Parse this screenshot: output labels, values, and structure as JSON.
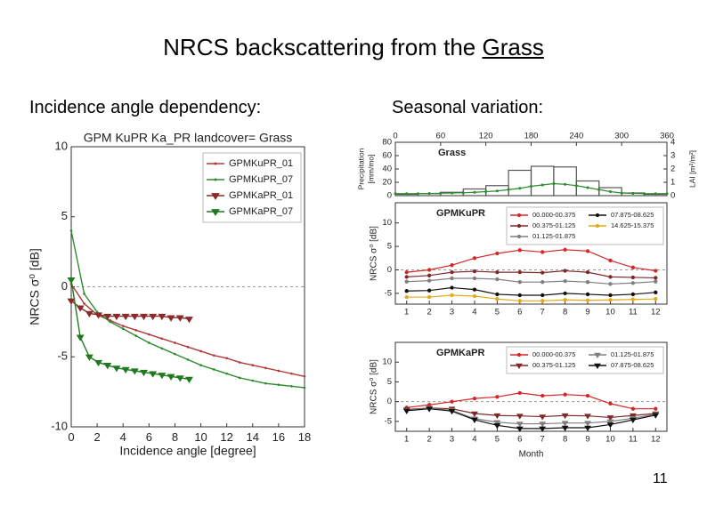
{
  "slide": {
    "title": [
      "NRCS backscattering from the",
      "Grass"
    ],
    "left_heading": "Incidence angle dependency:",
    "right_heading": "Seasonal variation:",
    "page_number": "11"
  },
  "chart_data": [
    {
      "type": "line",
      "title": "GPM KuPR Ka_PR  landcover= Grass",
      "xlabel": "Incidence angle [degree]",
      "ylabel": "NRCS σ⁰ [dB]",
      "xlim": [
        0,
        18
      ],
      "ylim": [
        -10,
        10
      ],
      "xticks": [
        0,
        2,
        4,
        6,
        8,
        10,
        12,
        14,
        16,
        18
      ],
      "yticks": [
        -10,
        -5,
        0,
        5,
        10
      ],
      "reference_line": 0,
      "legend": "upper right",
      "legend_columns": 1,
      "series": [
        {
          "name": "GPMKuPR_01",
          "color": "#b03a3a",
          "marker": "o",
          "x": [
            0,
            1,
            2,
            3,
            4,
            5,
            6,
            7,
            8,
            9,
            10,
            11,
            12,
            13,
            14,
            15,
            16,
            17,
            18
          ],
          "values": [
            0.2,
            -1.2,
            -2.0,
            -2.4,
            -2.8,
            -3.1,
            -3.4,
            -3.7,
            -4.0,
            -4.3,
            -4.6,
            -4.9,
            -5.1,
            -5.4,
            -5.6,
            -5.8,
            -6.0,
            -6.2,
            -6.4
          ]
        },
        {
          "name": "GPMKuPR_07",
          "color": "#2e8b2e",
          "marker": "o",
          "x": [
            0,
            1,
            2,
            3,
            4,
            5,
            6,
            7,
            8,
            9,
            10,
            11,
            12,
            13,
            14,
            15,
            16,
            17,
            18
          ],
          "values": [
            4.0,
            -0.5,
            -1.8,
            -2.5,
            -3.0,
            -3.5,
            -4.0,
            -4.4,
            -4.8,
            -5.2,
            -5.6,
            -5.9,
            -6.2,
            -6.5,
            -6.7,
            -6.9,
            -7.0,
            -7.1,
            -7.2
          ]
        },
        {
          "name": "GPMKaPR_01",
          "color": "#8b2a2a",
          "marker": "v",
          "x": [
            0,
            0.7,
            1.4,
            2.1,
            2.8,
            3.5,
            4.2,
            4.9,
            5.6,
            6.3,
            7.0,
            7.7,
            8.4,
            9.1
          ],
          "values": [
            -1.0,
            -1.5,
            -1.9,
            -2.0,
            -2.1,
            -2.1,
            -2.1,
            -2.1,
            -2.1,
            -2.1,
            -2.1,
            -2.2,
            -2.2,
            -2.3
          ]
        },
        {
          "name": "GPMKaPR_07",
          "color": "#1f7a1f",
          "marker": "v",
          "x": [
            0,
            0.7,
            1.4,
            2.1,
            2.8,
            3.5,
            4.2,
            4.9,
            5.6,
            6.3,
            7.0,
            7.7,
            8.4,
            9.1
          ],
          "values": [
            0.5,
            -3.6,
            -5.0,
            -5.4,
            -5.6,
            -5.8,
            -5.9,
            -6.0,
            -6.1,
            -6.2,
            -6.3,
            -6.4,
            -6.5,
            -6.6
          ]
        }
      ]
    },
    {
      "type": "histogram",
      "annotation": "Grass",
      "ylabel": [
        "Precipitation",
        "[mm/mo]"
      ],
      "y2label": "LAI [m²/m²]",
      "xaxis_position": "top",
      "xlim": [
        0,
        360
      ],
      "xticks": [
        0,
        60,
        120,
        180,
        240,
        300,
        360
      ],
      "ylim": [
        0,
        80
      ],
      "yticks": [
        0,
        20,
        40,
        60,
        80
      ],
      "y2lim": [
        0,
        4
      ],
      "y2ticks": [
        0,
        1,
        2,
        3,
        4
      ],
      "bins": [
        0,
        30,
        60,
        90,
        120,
        150,
        180,
        210,
        240,
        270,
        300,
        330,
        360
      ],
      "values": [
        2,
        3,
        5,
        10,
        15,
        38,
        44,
        43,
        22,
        12,
        4,
        2
      ],
      "color": "#555555",
      "lai": {
        "axis": "y2",
        "color": "#2e8b2e",
        "x": [
          0,
          15,
          30,
          45,
          60,
          75,
          90,
          105,
          120,
          135,
          150,
          165,
          180,
          195,
          210,
          225,
          240,
          255,
          270,
          285,
          300,
          315,
          330,
          345,
          360
        ],
        "values": [
          0.15,
          0.15,
          0.15,
          0.16,
          0.18,
          0.2,
          0.22,
          0.25,
          0.3,
          0.35,
          0.45,
          0.55,
          0.7,
          0.8,
          0.9,
          0.85,
          0.75,
          0.6,
          0.45,
          0.3,
          0.2,
          0.17,
          0.15,
          0.15,
          0.15
        ]
      }
    },
    {
      "type": "line",
      "annotation": "GPMKuPR",
      "ylabel": "NRCS σ⁰ [dB]",
      "xlim": [
        0.5,
        12.5
      ],
      "ylim": [
        -7.3,
        14.3
      ],
      "xticks": [
        1,
        2,
        3,
        4,
        5,
        6,
        7,
        8,
        9,
        10,
        11,
        12
      ],
      "yticks": [
        -5,
        0,
        5,
        10
      ],
      "reference_line": 0,
      "legend": "upper right",
      "legend_columns": 2,
      "x": [
        1,
        2,
        3,
        4,
        5,
        6,
        7,
        8,
        9,
        10,
        11,
        12
      ],
      "series": [
        {
          "name": "00.000-00.375",
          "color": "#d62728",
          "marker": "o",
          "values": [
            -0.5,
            0,
            1,
            2.5,
            3.5,
            4.2,
            3.8,
            4.3,
            4,
            2,
            0.5,
            -0.2
          ]
        },
        {
          "name": "00.375-01.125",
          "color": "#7f2a2a",
          "marker": "o",
          "values": [
            -1.5,
            -1.2,
            -0.5,
            -0.3,
            -0.5,
            -0.5,
            -0.6,
            -0.2,
            -0.5,
            -1.5,
            -1.6,
            -1.7
          ]
        },
        {
          "name": "01.125-01.875",
          "color": "#7f7f7f",
          "marker": "o",
          "values": [
            -2.5,
            -2.3,
            -1.8,
            -1.8,
            -2,
            -2.6,
            -2.6,
            -2.4,
            -2.6,
            -3,
            -2.8,
            -2.5
          ]
        },
        {
          "name": "07.875-08.625",
          "color": "#111111",
          "marker": "o",
          "values": [
            -4.5,
            -4.4,
            -3.8,
            -4.2,
            -5.2,
            -5.4,
            -5.4,
            -5,
            -5.2,
            -5.4,
            -5.2,
            -4.8
          ]
        },
        {
          "name": "14.625-15.375",
          "color": "#e6a817",
          "marker": "o",
          "values": [
            -5.8,
            -5.8,
            -5.4,
            -5.6,
            -6.2,
            -6.6,
            -6.6,
            -6.4,
            -6.5,
            -6.4,
            -6.3,
            -6.2
          ]
        }
      ]
    },
    {
      "type": "line",
      "annotation": "GPMKaPR",
      "xlabel": "Month",
      "ylabel": "NRCS σ⁰ [dB]",
      "xlim": [
        0.5,
        12.5
      ],
      "ylim": [
        -7.5,
        15
      ],
      "xticks": [
        1,
        2,
        3,
        4,
        5,
        6,
        7,
        8,
        9,
        10,
        11,
        12
      ],
      "yticks": [
        -5,
        0,
        5,
        10
      ],
      "reference_line": 0,
      "legend": "upper right",
      "legend_columns": 2,
      "x": [
        1,
        2,
        3,
        4,
        5,
        6,
        7,
        8,
        9,
        10,
        11,
        12
      ],
      "series": [
        {
          "name": "00.000-00.375",
          "color": "#d62728",
          "marker": "o",
          "values": [
            -1.5,
            -0.8,
            0,
            0.8,
            1.2,
            2.2,
            1.5,
            1.8,
            1.5,
            -0.5,
            -1.8,
            -1.8
          ]
        },
        {
          "name": "00.375-01.125",
          "color": "#7f2a2a",
          "marker": "v",
          "values": [
            -2,
            -1.6,
            -1.8,
            -3,
            -3.5,
            -3.6,
            -3.8,
            -3.5,
            -3.6,
            -4,
            -3.5,
            -3
          ]
        },
        {
          "name": "01.125-01.875",
          "color": "#7f7f7f",
          "marker": "v",
          "values": [
            -2.2,
            -1.6,
            -2.2,
            -4.3,
            -5.2,
            -5.6,
            -5.6,
            -5.4,
            -5.4,
            -5,
            -4.2,
            -3.2
          ]
        },
        {
          "name": "07.875-08.625",
          "color": "#111111",
          "marker": "v",
          "values": [
            -2.3,
            -1.8,
            -2.4,
            -4.6,
            -6,
            -6.8,
            -6.8,
            -6.6,
            -6.6,
            -5.8,
            -4.6,
            -3.4
          ]
        }
      ]
    }
  ]
}
